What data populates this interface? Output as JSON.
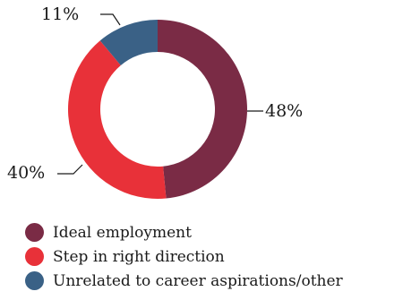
{
  "chart_data": {
    "type": "pie",
    "style": "donut",
    "title": "",
    "slices": [
      {
        "name": "Ideal employment",
        "value": 48,
        "label": "48%",
        "color": "#7a2b45"
      },
      {
        "name": "Step in right direction",
        "value": 40,
        "label": "40%",
        "color": "#e83139"
      },
      {
        "name": "Unrelated to career aspirations/other",
        "value": 11,
        "label": "11%",
        "color": "#3a6186"
      }
    ],
    "legend_placement": "bottom-left"
  }
}
